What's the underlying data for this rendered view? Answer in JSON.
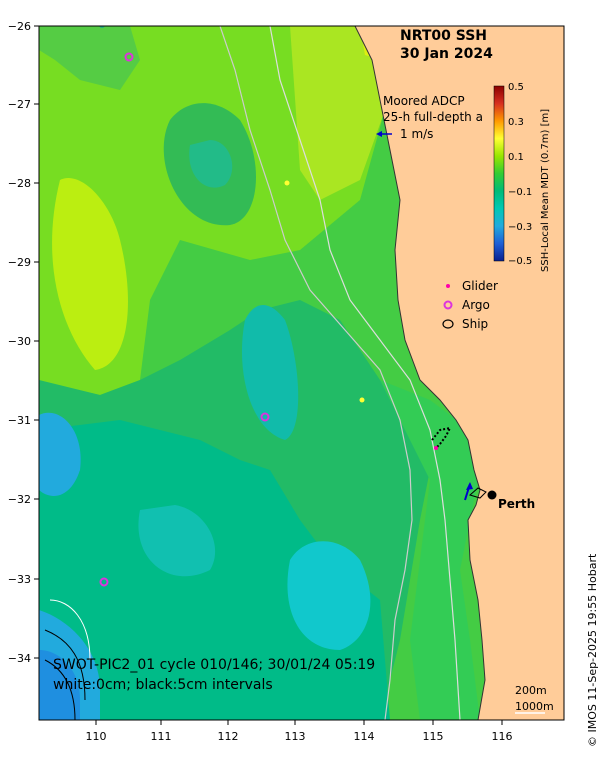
{
  "title": {
    "line1": "NRT00 SSH",
    "line2": "30 Jan 2024"
  },
  "adcp": {
    "line1": "Moored ADCP",
    "line2": "25-h full-depth a",
    "scale_label": "1 m/s"
  },
  "colorbar": {
    "label": "SSH-Local Mean MDT (0.7m) [m]",
    "ticks": [
      "0.5",
      "0.3",
      "0.1",
      "−0.1",
      "−0.3",
      "−0.5"
    ],
    "colors": [
      "#8b0000",
      "#d7301f",
      "#ff9900",
      "#ffff33",
      "#99e600",
      "#33cc33",
      "#00bb77",
      "#00c8b4",
      "#22aadd",
      "#1f5fd6",
      "#0a1f8f"
    ]
  },
  "legend": {
    "glider": "Glider",
    "argo": "Argo",
    "ship": "Ship"
  },
  "axes": {
    "x_ticks": [
      "110",
      "111",
      "112",
      "113",
      "114",
      "115",
      "116"
    ],
    "y_ticks": [
      "−26",
      "−27",
      "−28",
      "−29",
      "−30",
      "−31",
      "−32",
      "−33",
      "−34"
    ]
  },
  "city": "Perth",
  "footer": {
    "line1": "SWOT-PIC2_01 cycle 010/146; 30/01/24 05:19",
    "line2": "white:0cm; black:5cm intervals"
  },
  "isobaths": {
    "shallow": "200m",
    "deep": "1000m"
  },
  "credit": "© IMOS 11-Sep-2025 19:55 Hobart",
  "colors": {
    "land": "#ffcc99",
    "ship_track": "#000000",
    "argo": "#dd33dd",
    "glider": "#ff00aa"
  }
}
